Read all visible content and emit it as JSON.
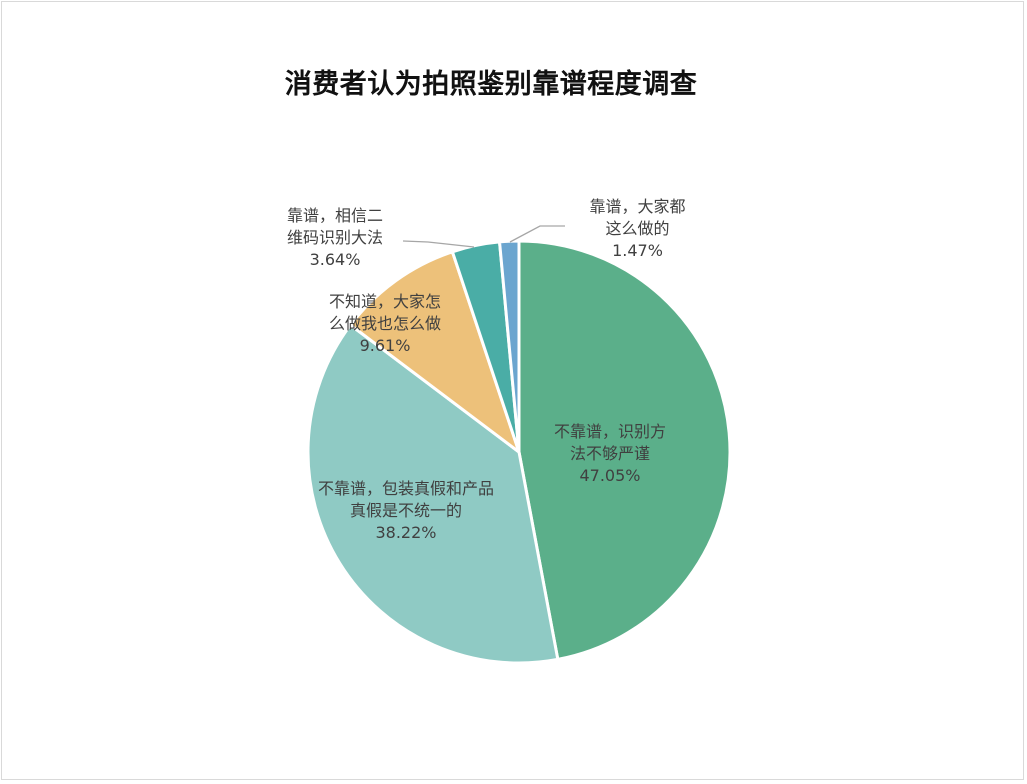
{
  "chart_data": {
    "type": "pie",
    "title": "消费者认为拍照鉴别靠谱程度调查",
    "start_angle": "12 o'clock, clockwise",
    "legend": "none (data labels on/beside slices)",
    "slices": [
      {
        "label": "不靠谱，识别方法不够严谨",
        "value": 47.05,
        "display": "47.05%",
        "color": "#5BAF8A"
      },
      {
        "label": "不靠谱，包装真假和产品真假是不统一的",
        "value": 38.22,
        "display": "38.22%",
        "color": "#8FCAC4"
      },
      {
        "label": "不知道，大家怎么做我也怎么做",
        "value": 9.61,
        "display": "9.61%",
        "color": "#EDC17A"
      },
      {
        "label": "靠谱，相信二维码识别大法",
        "value": 3.64,
        "display": "3.64%",
        "color": "#4AADA6"
      },
      {
        "label": "靠谱，大家都这么做的",
        "value": 1.47,
        "display": "1.47%",
        "color": "#6BA5CF"
      }
    ]
  },
  "labels": {
    "s0": {
      "line1": "不靠谱，识别方",
      "line2": "法不够严谨",
      "pct": "47.05%"
    },
    "s1": {
      "line1": "不靠谱，包装真假和产品",
      "line2": "真假是不统一的",
      "pct": "38.22%"
    },
    "s2": {
      "line1": "不知道，大家怎",
      "line2": "么做我也怎么做",
      "pct": "9.61%"
    },
    "s3": {
      "line1": "靠谱，相信二",
      "line2": "维码识别大法",
      "pct": "3.64%"
    },
    "s4": {
      "line1": "靠谱，大家都",
      "line2": "这么做的",
      "pct": "1.47%"
    }
  }
}
